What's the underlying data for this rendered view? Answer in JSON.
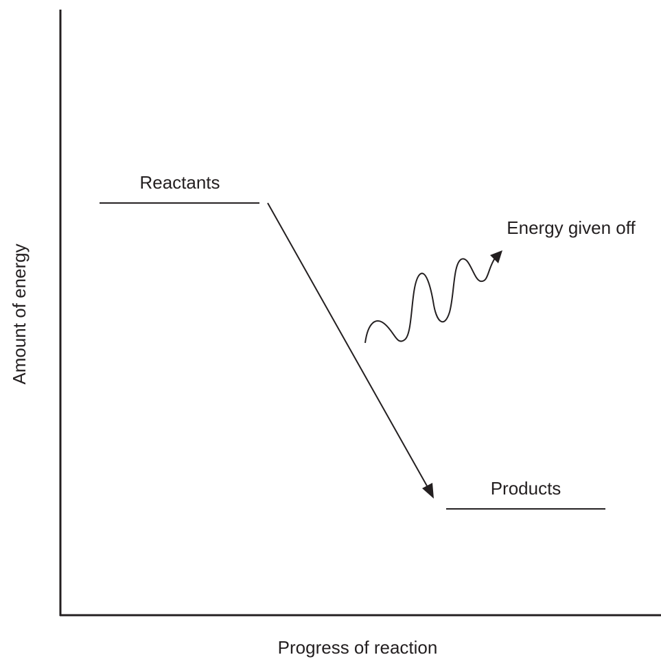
{
  "axes": {
    "y_label": "Amount of energy",
    "x_label": "Progress of reaction"
  },
  "levels": {
    "reactants": "Reactants",
    "products": "Products"
  },
  "energy": {
    "label": "Energy given off"
  }
}
